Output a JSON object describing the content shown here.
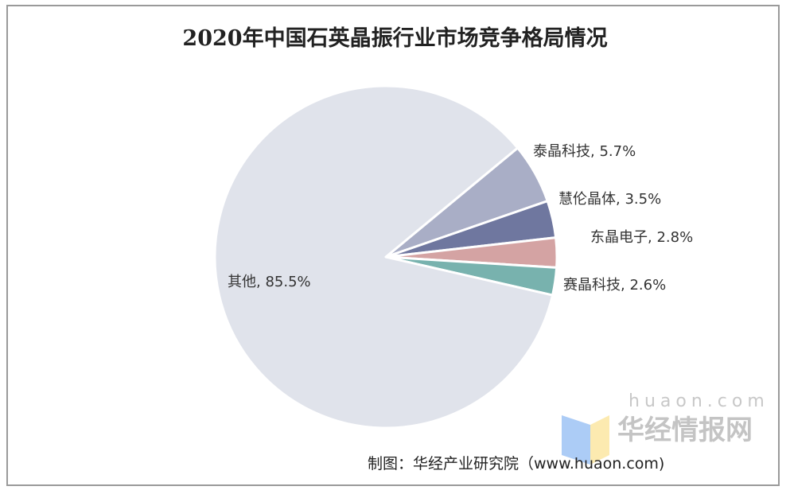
{
  "chart_data": {
    "type": "pie",
    "title": "2020年中国石英晶振行业市场竞争格局情况",
    "start_angle_deg": 50.4,
    "direction": "clockwise",
    "slices": [
      {
        "label": "泰晶科技",
        "value": 5.7,
        "text": "泰晶科技, 5.7%",
        "color": "#a9aec6"
      },
      {
        "label": "慧伦晶体",
        "value": 3.5,
        "text": "慧伦晶体, 3.5%",
        "color": "#6f779f"
      },
      {
        "label": "东晶电子",
        "value": 2.8,
        "text": "东晶电子, 2.8%",
        "color": "#d4a3a3"
      },
      {
        "label": "赛晶科技",
        "value": 2.6,
        "text": "赛晶科技, 2.6%",
        "color": "#78b2ae"
      },
      {
        "label": "其他",
        "value": 85.5,
        "text": "其他, 85.5%",
        "color": "#e0e3eb"
      }
    ]
  },
  "source": "制图：华经产业研究院（www.huaon.com)",
  "watermark": {
    "name": "华经情报网",
    "url": "huaon.com"
  }
}
